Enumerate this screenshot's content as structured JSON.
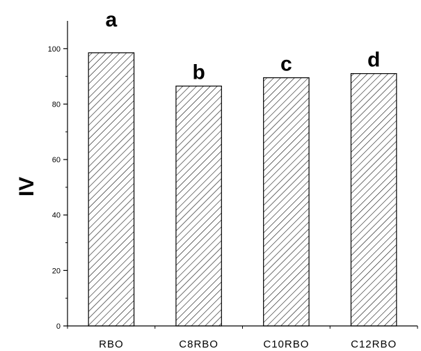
{
  "chart_data": {
    "type": "bar",
    "title": "",
    "xlabel": "",
    "ylabel": "IV",
    "ylim": [
      0,
      110
    ],
    "yticks": [
      "0",
      "20",
      "40",
      "60",
      "80",
      "100"
    ],
    "categories": [
      "RBO",
      "C8RBO",
      "C10RBO",
      "C12RBO"
    ],
    "values": [
      98.5,
      86.5,
      89.5,
      91
    ],
    "significance_labels": [
      "a",
      "b",
      "c",
      "d"
    ],
    "grid": false,
    "bar_fill": "hatched",
    "colors": {
      "bar_stroke": "#000000",
      "hatch": "#000000",
      "background": "#ffffff"
    }
  }
}
